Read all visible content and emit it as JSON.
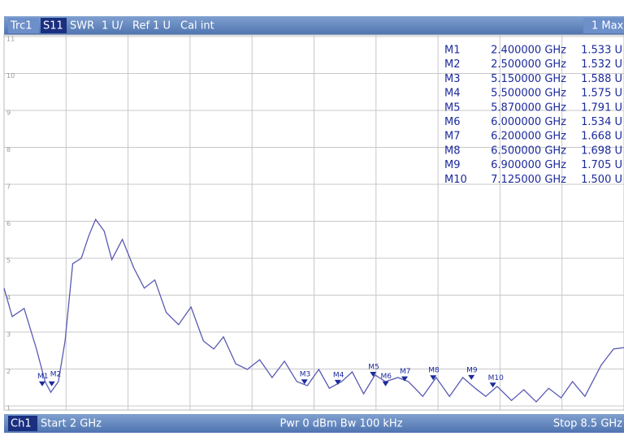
{
  "header": {
    "trace": "Trc1",
    "parameter": "S11",
    "format": "SWR",
    "scale": "1 U/",
    "reference": "Ref 1 U",
    "calibration": "Cal int",
    "trace_function": "1 Max"
  },
  "footer": {
    "channel": "Ch1",
    "start": "Start 2 GHz",
    "settings": "Pwr 0 dBm Bw 100 kHz",
    "stop": "Stop 8.5 GHz"
  },
  "chart_data": {
    "type": "line",
    "x": [
      2.0,
      2.085,
      2.21,
      2.34,
      2.43,
      2.49,
      2.57,
      2.64,
      2.72,
      2.81,
      2.89,
      2.96,
      3.05,
      3.13,
      3.24,
      3.36,
      3.47,
      3.58,
      3.7,
      3.83,
      3.96,
      4.09,
      4.2,
      4.3,
      4.43,
      4.55,
      4.68,
      4.81,
      4.94,
      5.07,
      5.18,
      5.3,
      5.41,
      5.54,
      5.65,
      5.77,
      5.89,
      6.0,
      6.13,
      6.24,
      6.39,
      6.53,
      6.67,
      6.81,
      6.94,
      7.05,
      7.17,
      7.32,
      7.45,
      7.58,
      7.71,
      7.84,
      7.96,
      8.09,
      8.26,
      8.39,
      8.5
    ],
    "series": [
      {
        "name": "Trc1",
        "color": "#5a5ab4",
        "values": [
          4.19,
          3.42,
          3.64,
          2.54,
          1.66,
          1.37,
          1.66,
          2.76,
          4.85,
          5.0,
          5.62,
          6.05,
          5.73,
          4.96,
          5.51,
          4.74,
          4.19,
          4.41,
          3.53,
          3.2,
          3.68,
          2.76,
          2.54,
          2.87,
          2.14,
          1.99,
          2.25,
          1.77,
          2.21,
          1.66,
          1.55,
          1.99,
          1.48,
          1.66,
          1.92,
          1.33,
          1.84,
          1.66,
          1.77,
          1.66,
          1.26,
          1.77,
          1.26,
          1.77,
          1.48,
          1.26,
          1.53,
          1.15,
          1.44,
          1.11,
          1.48,
          1.22,
          1.66,
          1.26,
          2.1,
          2.54,
          2.58
        ]
      }
    ],
    "xlim": [
      2,
      8.5
    ],
    "x_divisions": 10,
    "ylim": [
      1,
      11
    ],
    "yticks": [
      1,
      2,
      3,
      4,
      5,
      6,
      7,
      8,
      9,
      10,
      11
    ],
    "grid": true,
    "markers": {
      "names": [
        "M1",
        "M2",
        "M3",
        "M4",
        "M5",
        "M6",
        "M7",
        "M8",
        "M9",
        "M10"
      ],
      "x": [
        2.4,
        2.5,
        5.15,
        5.5,
        5.87,
        6.0,
        6.2,
        6.5,
        6.9,
        7.125
      ],
      "x_labels": [
        "2.400000 GHz",
        "2.500000 GHz",
        "5.150000 GHz",
        "5.500000 GHz",
        "5.870000 GHz",
        "6.000000 GHz",
        "6.200000 GHz",
        "6.500000 GHz",
        "6.900000 GHz",
        "7.125000 GHz"
      ],
      "values": [
        1.533,
        1.532,
        1.588,
        1.575,
        1.791,
        1.534,
        1.668,
        1.698,
        1.705,
        1.5
      ],
      "value_labels": [
        "1.533 U",
        "1.532 U",
        "1.588 U",
        "1.575 U",
        "1.791 U",
        "1.534 U",
        "1.668 U",
        "1.698 U",
        "1.705 U",
        "1.500 U"
      ]
    }
  }
}
